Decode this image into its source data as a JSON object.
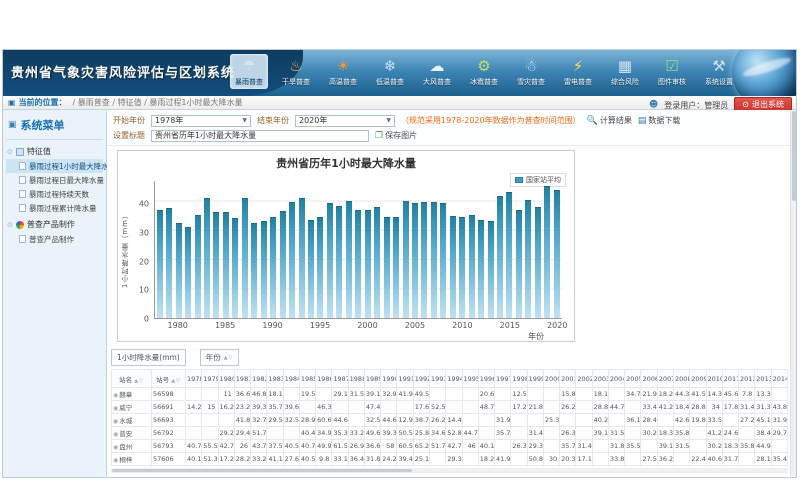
{
  "app": {
    "title": "贵州省气象灾害风险评估与区划系统"
  },
  "toolbar": {
    "items": [
      {
        "label": "暴雨普查",
        "icon": "rainstorm-icon",
        "glyph": "☂",
        "color": "#cfe6f5",
        "active": true
      },
      {
        "label": "干旱普查",
        "icon": "drought-icon",
        "glyph": "♨",
        "color": "#ffb347",
        "active": false
      },
      {
        "label": "高温普查",
        "icon": "high-temp-icon",
        "glyph": "☀",
        "color": "#ff9430",
        "active": false
      },
      {
        "label": "低温普查",
        "icon": "low-temp-icon",
        "glyph": "❄",
        "color": "#bfe0f5",
        "active": false
      },
      {
        "label": "大风普查",
        "icon": "wind-icon",
        "glyph": "☁",
        "color": "#e8f2fa",
        "active": false
      },
      {
        "label": "冰雹普查",
        "icon": "hail-icon",
        "glyph": "⚙",
        "color": "#bde06f",
        "active": false
      },
      {
        "label": "雪灾普查",
        "icon": "snow-icon",
        "glyph": "☃",
        "color": "#dfeefc",
        "active": false
      },
      {
        "label": "雷电普查",
        "icon": "lightning-icon",
        "glyph": "⚡",
        "color": "#ffe14d",
        "active": false
      },
      {
        "label": "综合风险",
        "icon": "calculator-icon",
        "glyph": "▦",
        "color": "#d8e6f0",
        "active": false
      },
      {
        "label": "图件审核",
        "icon": "map-check-icon",
        "glyph": "☑",
        "color": "#9fd58a",
        "active": false
      },
      {
        "label": "系统设置",
        "icon": "wrench-icon",
        "glyph": "⚒",
        "color": "#d5dde4",
        "active": false
      }
    ]
  },
  "breadcrumb": {
    "location_label": "当前的位置：",
    "path": "/  暴雨普查  /  特征值  /  暴雨过程1小时最大降水量"
  },
  "user": {
    "label": "登录用户：管理员",
    "logout_label": "退出系统"
  },
  "sidebar": {
    "title": "系统菜单",
    "groups": [
      {
        "label": "特征值",
        "icon": "list-icon",
        "items": [
          {
            "label": "暴雨过程1小时最大降水量",
            "active": true
          },
          {
            "label": "暴雨过程日最大降水量",
            "active": false
          },
          {
            "label": "暴雨过程持续天数",
            "active": false
          },
          {
            "label": "暴雨过程累计降水量",
            "active": false
          }
        ]
      },
      {
        "label": "普查产品制作",
        "icon": "color-wheel-icon",
        "items": [
          {
            "label": "普查产品制作",
            "active": false
          }
        ]
      }
    ]
  },
  "filters": {
    "start_label": "开始年份",
    "start_value": "1978年",
    "end_label": "结束年份",
    "end_value": "2020年",
    "note": "（规范采用1978-2020年数据作为普查时间范围）",
    "calc_button": "计算结果",
    "download_button": "数据下载",
    "title_label": "设置标题",
    "title_value": "贵州省历年1小时最大降水量",
    "save_button": "保存图片"
  },
  "chart_data": {
    "type": "bar",
    "title": "贵州省历年1小时最大降水量",
    "xlabel": "年份",
    "ylabel": "1小时降水量（mm）",
    "legend": [
      "国家站平均"
    ],
    "legend_position": "top-right",
    "grid": true,
    "ylim": [
      0,
      48
    ],
    "yticks": [
      0,
      10,
      20,
      30,
      40
    ],
    "bar_color": "#3d9cc4",
    "categories": [
      1978,
      1979,
      1980,
      1981,
      1982,
      1983,
      1984,
      1985,
      1986,
      1987,
      1988,
      1989,
      1990,
      1991,
      1992,
      1993,
      1994,
      1995,
      1996,
      1997,
      1998,
      1999,
      2000,
      2001,
      2002,
      2003,
      2004,
      2005,
      2006,
      2007,
      2008,
      2009,
      2010,
      2011,
      2012,
      2013,
      2014,
      2015,
      2016,
      2017,
      2018,
      2019,
      2020
    ],
    "values": [
      37.6,
      38.3,
      33.2,
      31.5,
      35.8,
      41.8,
      37.0,
      37.0,
      34.8,
      41.9,
      33.2,
      33.6,
      35.1,
      37.4,
      40.5,
      41.6,
      34.2,
      35.2,
      40.0,
      38.9,
      40.8,
      37.6,
      37.7,
      38.6,
      35.1,
      35.1,
      40.7,
      40.1,
      40.5,
      40.3,
      40.0,
      35.6,
      35.0,
      35.8,
      34.1,
      33.8,
      42.3,
      44.0,
      37.5,
      41.2,
      38.7,
      45.8,
      44.7
    ]
  },
  "table": {
    "measure_chip": "1小时降水量(mm)",
    "year_chip": "年份",
    "col_station_name": "站名",
    "col_station_id": "站号",
    "years": [
      1978,
      1979,
      1980,
      1981,
      1982,
      1983,
      1984,
      1985,
      1986,
      1987,
      1988,
      1989,
      1990,
      1991,
      1992,
      1993,
      1994,
      1995,
      1996,
      1997,
      1998,
      1999,
      2000,
      2001,
      2002,
      2003,
      2004,
      2005,
      2006,
      2007,
      2008,
      2009,
      2010,
      2011,
      2012,
      2013,
      2014
    ],
    "rows": [
      {
        "name": "赫章",
        "id": "56598",
        "values": [
          "",
          "",
          "11",
          "36.6",
          "46.8",
          "18.1",
          "",
          "19.5",
          "",
          "29.1",
          "31.5",
          "39.1",
          "32.9",
          "41.9",
          "49.5",
          "",
          "",
          "",
          "20.6",
          "",
          "12.5",
          "",
          "",
          "15.8",
          "",
          "18.1",
          "",
          "34.7",
          "21.9",
          "18.2",
          "44.3",
          "41.5",
          "14.3",
          "45.6",
          "7.8",
          "13.3",
          ""
        ]
      },
      {
        "name": "威宁",
        "id": "56691",
        "values": [
          "14.2",
          "15",
          "16.2",
          "23.2",
          "39.3",
          "35.7",
          "39.6",
          "",
          "46.3",
          "",
          "",
          "47.4",
          "",
          "",
          "17.6",
          "52.5",
          "",
          "",
          "48.7",
          "",
          "17.2",
          "21.8",
          "",
          "26.2",
          "",
          "28.8",
          "44.7",
          "",
          "33.4",
          "41.2",
          "18.4",
          "28.8",
          "34",
          "17.8",
          "31.4",
          "31.3",
          "43.8"
        ]
      },
      {
        "name": "水城",
        "id": "56693",
        "values": [
          "",
          "",
          "",
          "41.8",
          "32.7",
          "29.5",
          "32.5",
          "28.9",
          "60.6",
          "44.6",
          "",
          "32.5",
          "44.6",
          "12.9",
          "38.7",
          "26.2",
          "14.4",
          "",
          "",
          "31.9",
          "",
          "",
          "25.3",
          "",
          "",
          "40.2",
          "",
          "36.1",
          "28.4",
          "",
          "42.6",
          "19.8",
          "33.5",
          "",
          "27.2",
          "45.1",
          "31.9"
        ]
      },
      {
        "name": "普安",
        "id": "56792",
        "values": [
          "",
          "",
          "29.2",
          "29.4",
          "51.7",
          "",
          "",
          "40.4",
          "34.9",
          "35.3",
          "33.2",
          "49.6",
          "39.3",
          "50.5",
          "25.8",
          "34.6",
          "52.8",
          "44.7",
          "",
          "35.7",
          "",
          "31.4",
          "",
          "26.3",
          "",
          "39.1",
          "31.5",
          "",
          "30.2",
          "18.3",
          "35.8",
          "",
          "41.2",
          "24.6",
          "",
          "38.4",
          "29.7"
        ]
      },
      {
        "name": "盘州",
        "id": "56793",
        "values": [
          "40.7",
          "55.5",
          "42.7",
          "26",
          "43.7",
          "37.5",
          "40.5",
          "40.7",
          "49.9",
          "61.5",
          "26.9",
          "36.6",
          "58",
          "60.5",
          "65.2",
          "51.7",
          "42.7",
          "46",
          "40.1",
          "",
          "26.3",
          "29.3",
          "",
          "35.7",
          "31.4",
          "",
          "31.8",
          "35.5",
          "",
          "39.1",
          "31.5",
          "",
          "30.2",
          "18.3",
          "35.8",
          "44.9",
          ""
        ]
      },
      {
        "name": "桐梓",
        "id": "57606",
        "values": [
          "40.1",
          "51.3",
          "17.2",
          "28.2",
          "33.2",
          "41.1",
          "27.6",
          "40.5",
          "9.8",
          "33.1",
          "36.4",
          "31.8",
          "24.2",
          "39.4",
          "25.1",
          "",
          "29.3",
          "",
          "18.2",
          "41.9",
          "",
          "50.8",
          "30",
          "20.3",
          "17.1",
          "",
          "33.8",
          "",
          "27.5",
          "36.2",
          "",
          "22.4",
          "40.6",
          "31.7",
          "",
          "28.1",
          "35.4"
        ]
      }
    ]
  }
}
